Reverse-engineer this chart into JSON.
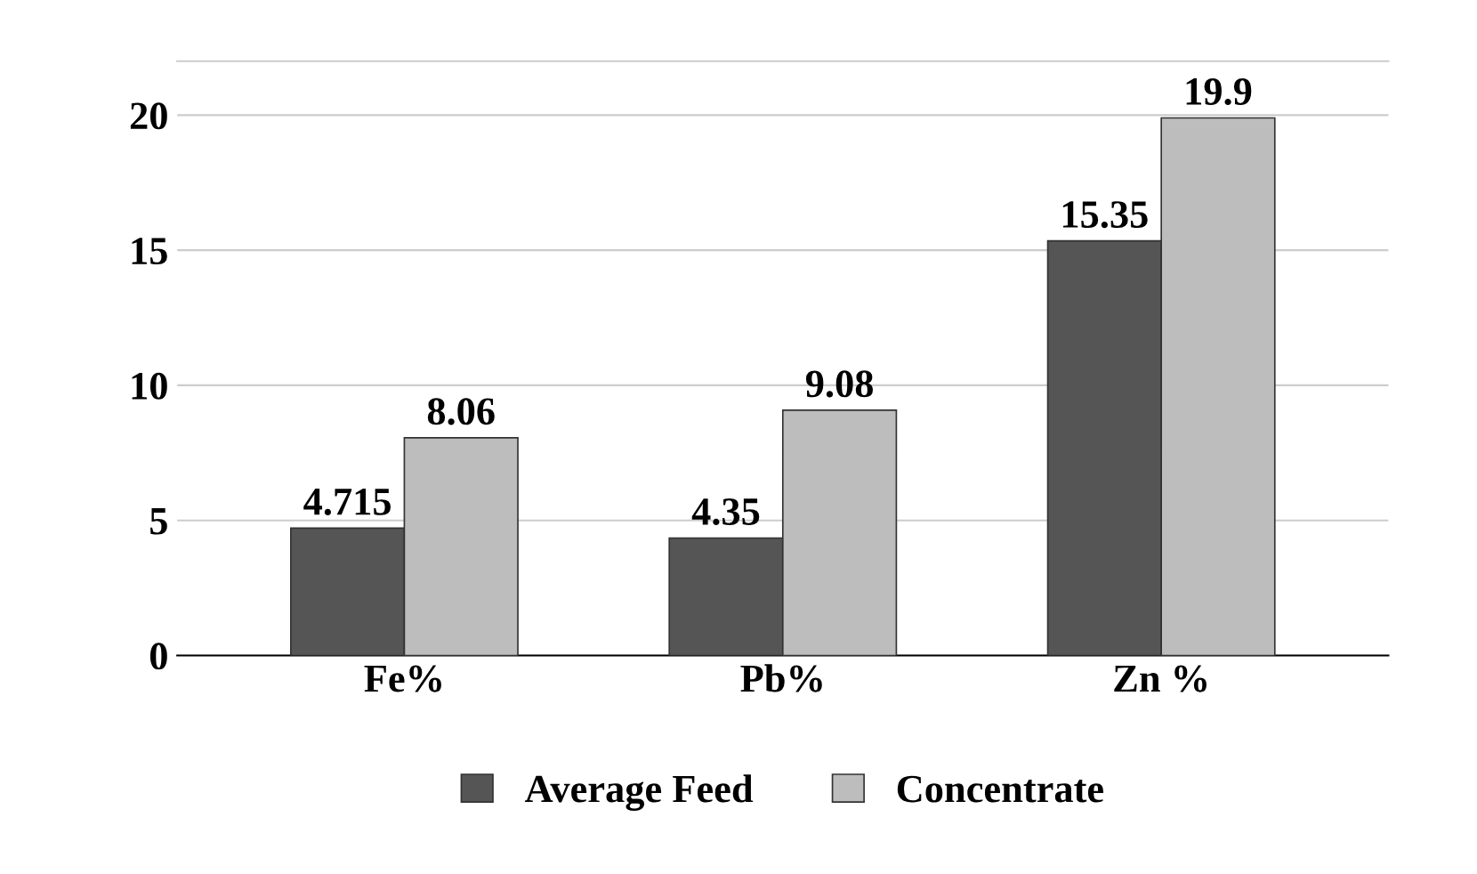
{
  "chart_data": {
    "type": "bar",
    "categories": [
      "Fe%",
      "Pb%",
      "Zn %"
    ],
    "series": [
      {
        "name": "Average Feed",
        "color": "#555555",
        "values": [
          4.715,
          4.35,
          15.35
        ]
      },
      {
        "name": "Concentrate",
        "color": "#bdbdbd",
        "values": [
          8.06,
          9.08,
          19.9
        ]
      }
    ],
    "ylim": [
      0,
      22
    ],
    "yticks": [
      0,
      5,
      10,
      15,
      20
    ],
    "grid": "y",
    "legend": "bottom",
    "data_labels": true
  }
}
